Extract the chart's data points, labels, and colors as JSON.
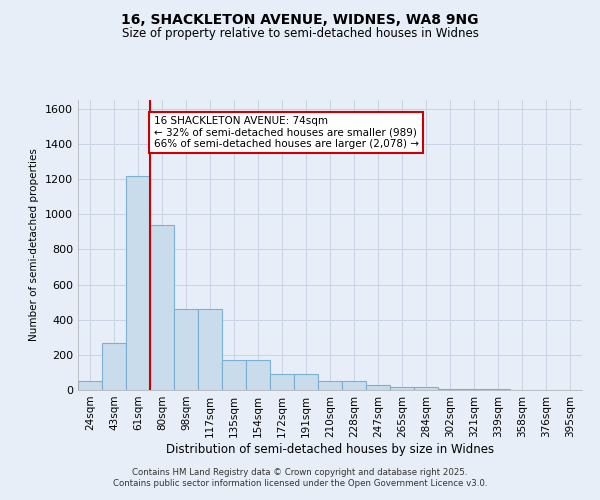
{
  "title1": "16, SHACKLETON AVENUE, WIDNES, WA8 9NG",
  "title2": "Size of property relative to semi-detached houses in Widnes",
  "xlabel": "Distribution of semi-detached houses by size in Widnes",
  "ylabel": "Number of semi-detached properties",
  "bins": [
    "24sqm",
    "43sqm",
    "61sqm",
    "80sqm",
    "98sqm",
    "117sqm",
    "135sqm",
    "154sqm",
    "172sqm",
    "191sqm",
    "210sqm",
    "228sqm",
    "247sqm",
    "265sqm",
    "284sqm",
    "302sqm",
    "321sqm",
    "339sqm",
    "358sqm",
    "376sqm",
    "395sqm"
  ],
  "values": [
    50,
    265,
    1220,
    940,
    460,
    460,
    170,
    170,
    90,
    90,
    50,
    50,
    30,
    15,
    15,
    5,
    3,
    3,
    1,
    1,
    1
  ],
  "bar_color": "#c9dcec",
  "bar_edge_color": "#7bafd4",
  "vline_x_idx": 3,
  "vline_color": "#cc0000",
  "annotation_text": "16 SHACKLETON AVENUE: 74sqm\n← 32% of semi-detached houses are smaller (989)\n66% of semi-detached houses are larger (2,078) →",
  "annotation_box_facecolor": "#ffffff",
  "annotation_box_edgecolor": "#cc0000",
  "ylim": [
    0,
    1650
  ],
  "yticks": [
    0,
    200,
    400,
    600,
    800,
    1000,
    1200,
    1400,
    1600
  ],
  "grid_color": "#c8d4e4",
  "background_color": "#e8eef8",
  "footer1": "Contains HM Land Registry data © Crown copyright and database right 2025.",
  "footer2": "Contains public sector information licensed under the Open Government Licence v3.0."
}
